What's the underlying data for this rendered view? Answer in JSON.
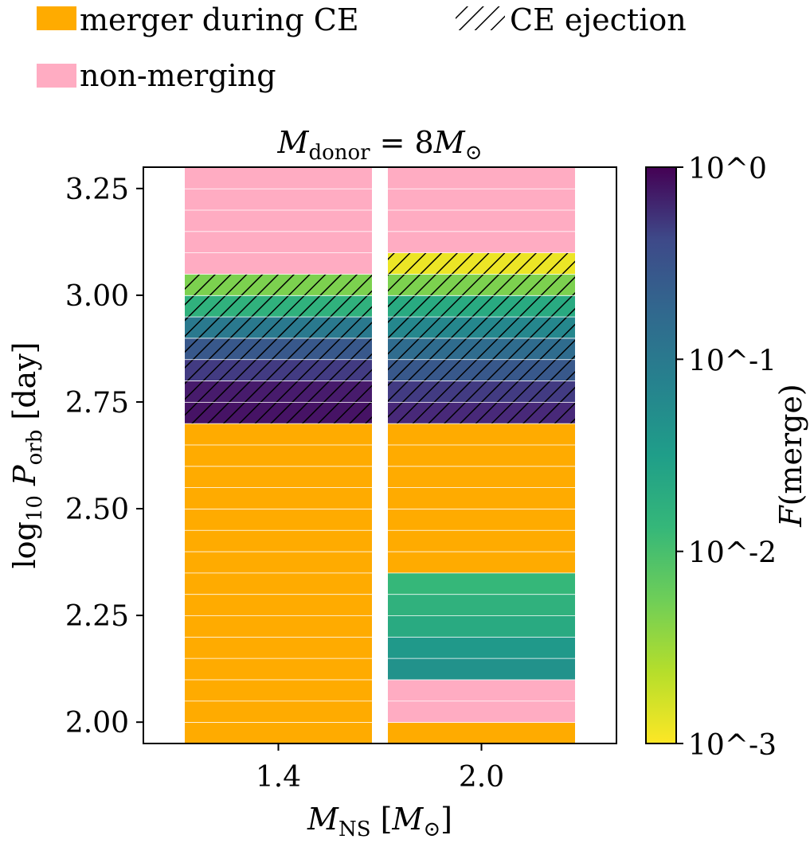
{
  "chart_data": {
    "type": "heatmap",
    "title": "M_donor = 8M_⊙",
    "xlabel": "M_NS [M_⊙]",
    "ylabel": "log10 P_orb [day]",
    "colorbar_label": "F(merge)",
    "colorbar_scale": "log",
    "colorbar_range": [
      0.001,
      1
    ],
    "colorbar_ticks": [
      "10^0",
      "10^-1",
      "10^-2",
      "10^-3"
    ],
    "colormap": "viridis_r",
    "categories": [
      "1.4",
      "2.0"
    ],
    "yticks": [
      "2.00",
      "2.25",
      "2.50",
      "2.75",
      "3.00",
      "3.25"
    ],
    "ylim": [
      1.95,
      3.3
    ],
    "bin_width": 0.05,
    "legend": [
      {
        "label": "merger during CE",
        "color": "#ffab00",
        "style": "solid"
      },
      {
        "label": "non-merging",
        "color": "#ffacc2",
        "style": "solid"
      },
      {
        "label": "CE ejection",
        "style": "hatch"
      }
    ],
    "columns": [
      {
        "x": "1.4",
        "bins": [
          {
            "y": 1.95,
            "outcome": "merger during CE"
          },
          {
            "y": 2.0,
            "outcome": "merger during CE"
          },
          {
            "y": 2.05,
            "outcome": "merger during CE"
          },
          {
            "y": 2.1,
            "outcome": "merger during CE"
          },
          {
            "y": 2.15,
            "outcome": "merger during CE"
          },
          {
            "y": 2.2,
            "outcome": "merger during CE"
          },
          {
            "y": 2.25,
            "outcome": "merger during CE"
          },
          {
            "y": 2.3,
            "outcome": "merger during CE"
          },
          {
            "y": 2.35,
            "outcome": "merger during CE"
          },
          {
            "y": 2.4,
            "outcome": "merger during CE"
          },
          {
            "y": 2.45,
            "outcome": "merger during CE"
          },
          {
            "y": 2.5,
            "outcome": "merger during CE"
          },
          {
            "y": 2.55,
            "outcome": "merger during CE"
          },
          {
            "y": 2.6,
            "outcome": "merger during CE"
          },
          {
            "y": 2.65,
            "outcome": "merger during CE"
          },
          {
            "y": 2.7,
            "outcome": "CE ejection",
            "F": 0.7
          },
          {
            "y": 2.75,
            "outcome": "CE ejection",
            "F": 0.6
          },
          {
            "y": 2.8,
            "outcome": "CE ejection",
            "F": 0.3
          },
          {
            "y": 2.85,
            "outcome": "CE ejection",
            "F": 0.15
          },
          {
            "y": 2.9,
            "outcome": "CE ejection",
            "F": 0.06
          },
          {
            "y": 2.95,
            "outcome": "CE ejection",
            "F": 0.012
          },
          {
            "y": 3.0,
            "outcome": "CE ejection",
            "F": 0.004
          },
          {
            "y": 3.05,
            "outcome": "non-merging"
          },
          {
            "y": 3.1,
            "outcome": "non-merging"
          },
          {
            "y": 3.15,
            "outcome": "non-merging"
          },
          {
            "y": 3.2,
            "outcome": "non-merging"
          },
          {
            "y": 3.25,
            "outcome": "non-merging"
          }
        ]
      },
      {
        "x": "2.0",
        "bins": [
          {
            "y": 1.95,
            "outcome": "merger during CE"
          },
          {
            "y": 2.0,
            "outcome": "non-merging"
          },
          {
            "y": 2.05,
            "outcome": "non-merging"
          },
          {
            "y": 2.1,
            "outcome": "F",
            "F": 0.03
          },
          {
            "y": 2.15,
            "outcome": "F",
            "F": 0.025
          },
          {
            "y": 2.2,
            "outcome": "F",
            "F": 0.015
          },
          {
            "y": 2.25,
            "outcome": "F",
            "F": 0.012
          },
          {
            "y": 2.3,
            "outcome": "F",
            "F": 0.01
          },
          {
            "y": 2.35,
            "outcome": "merger during CE"
          },
          {
            "y": 2.4,
            "outcome": "merger during CE"
          },
          {
            "y": 2.45,
            "outcome": "merger during CE"
          },
          {
            "y": 2.5,
            "outcome": "merger during CE"
          },
          {
            "y": 2.55,
            "outcome": "merger during CE"
          },
          {
            "y": 2.6,
            "outcome": "merger during CE"
          },
          {
            "y": 2.65,
            "outcome": "merger during CE"
          },
          {
            "y": 2.7,
            "outcome": "CE ejection",
            "F": 0.45
          },
          {
            "y": 2.75,
            "outcome": "CE ejection",
            "F": 0.3
          },
          {
            "y": 2.8,
            "outcome": "CE ejection",
            "F": 0.15
          },
          {
            "y": 2.85,
            "outcome": "CE ejection",
            "F": 0.09
          },
          {
            "y": 2.9,
            "outcome": "CE ejection",
            "F": 0.04
          },
          {
            "y": 2.95,
            "outcome": "CE ejection",
            "F": 0.015
          },
          {
            "y": 3.0,
            "outcome": "CE ejection",
            "F": 0.004
          },
          {
            "y": 3.05,
            "outcome": "CE ejection",
            "F": 0.0012
          },
          {
            "y": 3.1,
            "outcome": "non-merging"
          },
          {
            "y": 3.15,
            "outcome": "non-merging"
          },
          {
            "y": 3.2,
            "outcome": "non-merging"
          },
          {
            "y": 3.25,
            "outcome": "non-merging"
          }
        ]
      }
    ]
  }
}
